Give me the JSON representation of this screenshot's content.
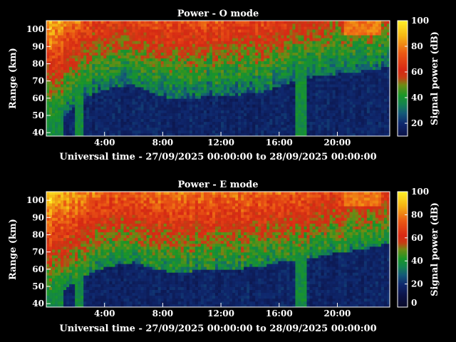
{
  "chart_data": [
    {
      "type": "heatmap",
      "title": "Power - O mode",
      "xlabel": "Universal time - 27/09/2025 00:00:00 to 28/09/2025 00:00:00",
      "ylabel": "Range (km)",
      "colorbar_label": "Signal power (dB)",
      "x_ticks": [
        "4:00",
        "8:00",
        "12:00",
        "16:00",
        "20:00"
      ],
      "x_tick_hours": [
        4,
        8,
        12,
        16,
        20
      ],
      "xlim_hours": [
        0,
        23.6
      ],
      "y_ticks": [
        40,
        50,
        60,
        70,
        80,
        90,
        100
      ],
      "ylim": [
        38,
        105
      ],
      "colorbar_ticks": [
        20,
        40,
        60,
        80,
        100
      ],
      "clim": [
        10,
        100
      ],
      "bottom_boundary_km": [
        [
          0,
          42
        ],
        [
          3,
          62
        ],
        [
          4.5,
          66
        ],
        [
          6,
          68
        ],
        [
          7.5,
          62
        ],
        [
          9,
          59
        ],
        [
          11,
          61
        ],
        [
          13,
          62
        ],
        [
          15,
          64
        ],
        [
          16,
          67
        ],
        [
          18,
          72
        ],
        [
          19,
          73
        ],
        [
          22,
          76
        ],
        [
          23.6,
          78
        ]
      ],
      "saturated_patch": {
        "hours": [
          20.5,
          23
        ],
        "range_km": [
          96,
          105
        ]
      }
    },
    {
      "type": "heatmap",
      "title": "Power - E mode",
      "xlabel": "Universal time - 27/09/2025 00:00:00 to 28/09/2025 00:00:00",
      "ylabel": "Range (km)",
      "colorbar_label": "Signal power (dB)",
      "x_ticks": [
        "4:00",
        "8:00",
        "12:00",
        "16:00",
        "20:00"
      ],
      "x_tick_hours": [
        4,
        8,
        12,
        16,
        20
      ],
      "xlim_hours": [
        0,
        23.6
      ],
      "y_ticks": [
        40,
        50,
        60,
        70,
        80,
        90,
        100
      ],
      "ylim": [
        38,
        105
      ],
      "colorbar_ticks": [
        "0",
        "20",
        "40",
        "60",
        "80",
        "100"
      ],
      "clim": [
        0,
        100
      ],
      "bottom_boundary_km": [
        [
          0,
          42
        ],
        [
          3,
          58
        ],
        [
          4.5,
          62
        ],
        [
          6,
          64
        ],
        [
          7.5,
          60
        ],
        [
          9,
          58
        ],
        [
          11,
          60
        ],
        [
          13,
          60
        ],
        [
          15,
          62
        ],
        [
          16,
          64
        ],
        [
          18,
          66
        ],
        [
          19,
          68
        ],
        [
          22,
          72
        ],
        [
          23.6,
          75
        ]
      ],
      "saturated_patch": {
        "hours": [
          20.5,
          23
        ],
        "range_km": [
          96,
          105
        ]
      }
    }
  ]
}
